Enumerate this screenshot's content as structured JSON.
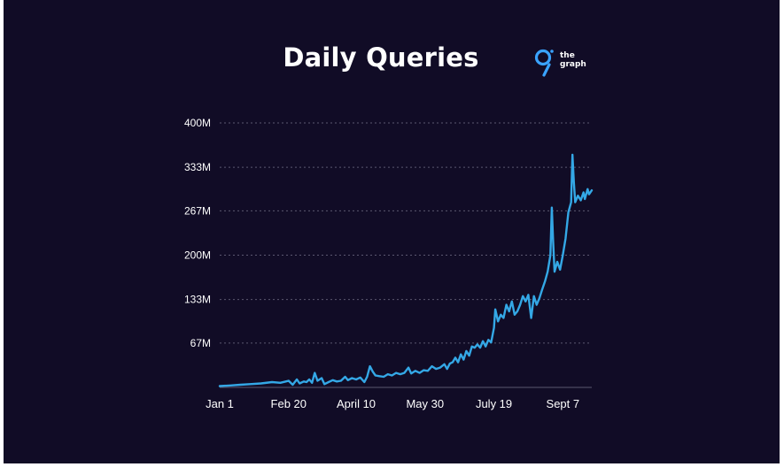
{
  "colors": {
    "background": "#110c26",
    "line": "#34a8e6",
    "grid": "#5b5870",
    "text": "#ffffff",
    "logo": "#3aa3ff"
  },
  "logo": {
    "word1": "the",
    "word2": "graph",
    "icon": "the-graph-logo-icon"
  },
  "chart_data": {
    "type": "line",
    "title": "Daily Queries",
    "xlabel": "",
    "ylabel": "",
    "ylim": [
      0,
      400
    ],
    "y_unit": "M",
    "grid": true,
    "y_ticks": [
      "400M",
      "333M",
      "267M",
      "200M",
      "133M",
      "67M"
    ],
    "y_tick_values": [
      400,
      333,
      267,
      200,
      133,
      67
    ],
    "x_ticks": [
      "Jan 1",
      "Feb 20",
      "April 10",
      "May 30",
      "July 19",
      "Sept 7"
    ],
    "x_tick_days": [
      0,
      50,
      99,
      149,
      199,
      249
    ],
    "x_range_days": [
      0,
      270
    ],
    "series": [
      {
        "values": [
          [
            0,
            2
          ],
          [
            8,
            3
          ],
          [
            15,
            4
          ],
          [
            22,
            5
          ],
          [
            30,
            6
          ],
          [
            38,
            8
          ],
          [
            44,
            7
          ],
          [
            48,
            9
          ],
          [
            50,
            10
          ],
          [
            53,
            4
          ],
          [
            56,
            12
          ],
          [
            58,
            6
          ],
          [
            61,
            9
          ],
          [
            63,
            8
          ],
          [
            65,
            12
          ],
          [
            67,
            7
          ],
          [
            69,
            22
          ],
          [
            71,
            10
          ],
          [
            74,
            14
          ],
          [
            76,
            5
          ],
          [
            79,
            8
          ],
          [
            82,
            11
          ],
          [
            85,
            9
          ],
          [
            88,
            10
          ],
          [
            91,
            16
          ],
          [
            93,
            11
          ],
          [
            96,
            14
          ],
          [
            99,
            12
          ],
          [
            102,
            15
          ],
          [
            105,
            8
          ],
          [
            107,
            16
          ],
          [
            109,
            32
          ],
          [
            111,
            24
          ],
          [
            113,
            18
          ],
          [
            116,
            17
          ],
          [
            119,
            16
          ],
          [
            122,
            20
          ],
          [
            125,
            18
          ],
          [
            128,
            22
          ],
          [
            131,
            20
          ],
          [
            134,
            22
          ],
          [
            137,
            30
          ],
          [
            139,
            21
          ],
          [
            142,
            25
          ],
          [
            145,
            22
          ],
          [
            148,
            26
          ],
          [
            151,
            25
          ],
          [
            154,
            32
          ],
          [
            157,
            28
          ],
          [
            160,
            30
          ],
          [
            163,
            35
          ],
          [
            165,
            28
          ],
          [
            167,
            36
          ],
          [
            169,
            38
          ],
          [
            171,
            45
          ],
          [
            173,
            38
          ],
          [
            175,
            50
          ],
          [
            177,
            42
          ],
          [
            179,
            55
          ],
          [
            181,
            48
          ],
          [
            183,
            62
          ],
          [
            185,
            60
          ],
          [
            187,
            65
          ],
          [
            189,
            60
          ],
          [
            191,
            70
          ],
          [
            193,
            62
          ],
          [
            195,
            72
          ],
          [
            197,
            68
          ],
          [
            199,
            90
          ],
          [
            200,
            118
          ],
          [
            202,
            100
          ],
          [
            204,
            110
          ],
          [
            206,
            105
          ],
          [
            208,
            125
          ],
          [
            210,
            115
          ],
          [
            212,
            130
          ],
          [
            214,
            110
          ],
          [
            216,
            115
          ],
          [
            218,
            125
          ],
          [
            220,
            138
          ],
          [
            222,
            130
          ],
          [
            224,
            140
          ],
          [
            226,
            105
          ],
          [
            228,
            138
          ],
          [
            230,
            125
          ],
          [
            232,
            135
          ],
          [
            234,
            148
          ],
          [
            236,
            160
          ],
          [
            238,
            175
          ],
          [
            240,
            200
          ],
          [
            241,
            272
          ],
          [
            242,
            220
          ],
          [
            243,
            175
          ],
          [
            245,
            190
          ],
          [
            247,
            178
          ],
          [
            249,
            200
          ],
          [
            251,
            225
          ],
          [
            253,
            265
          ],
          [
            255,
            280
          ],
          [
            256,
            352
          ],
          [
            257,
            310
          ],
          [
            258,
            280
          ],
          [
            260,
            290
          ],
          [
            262,
            283
          ],
          [
            264,
            295
          ],
          [
            265,
            285
          ],
          [
            267,
            300
          ],
          [
            268,
            292
          ],
          [
            270,
            298
          ]
        ]
      }
    ]
  }
}
